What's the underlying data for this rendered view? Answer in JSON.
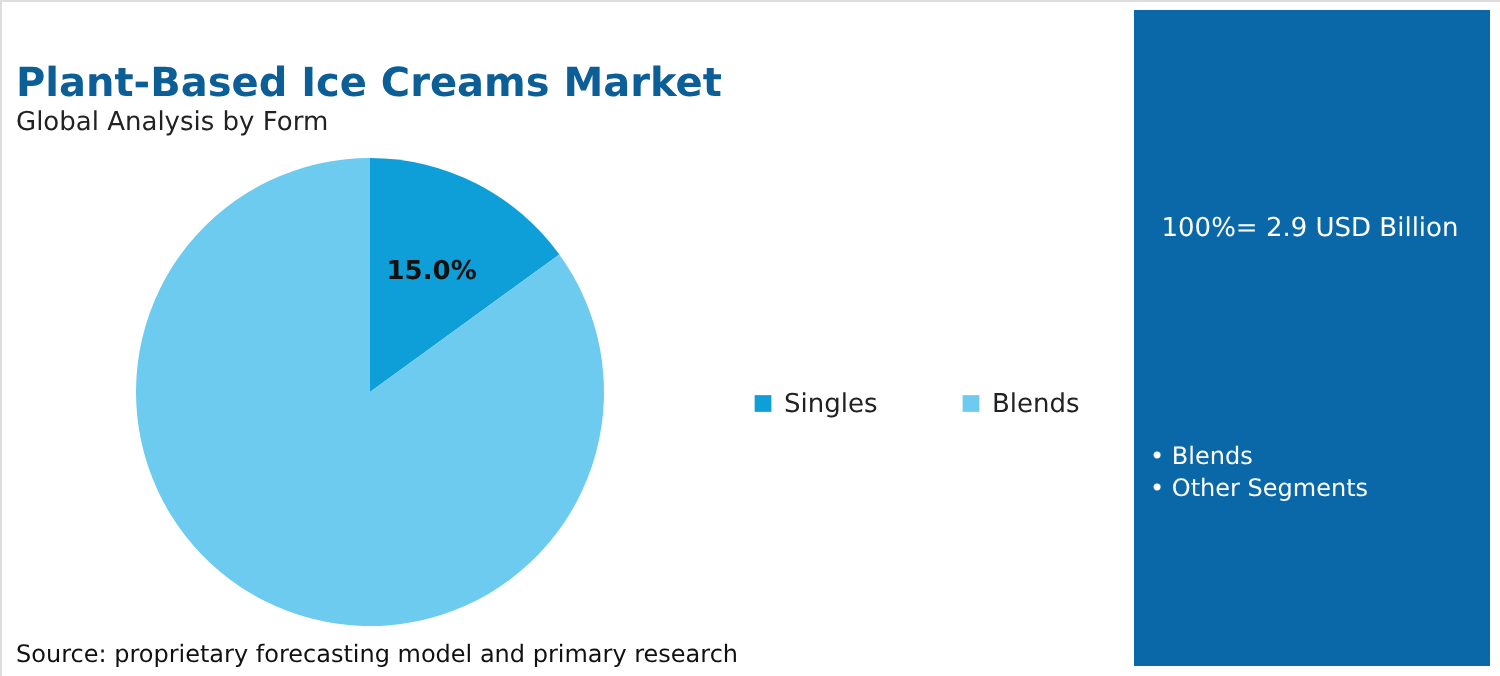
{
  "chart_data": {
    "type": "pie",
    "title": "Plant-Based Ice Creams Market",
    "subtitle": "Global Analysis by Form",
    "categories": [
      "Singles",
      "Blends"
    ],
    "values": [
      15.0,
      85.0
    ],
    "value_labels": [
      "15.0%",
      null
    ],
    "colors": [
      "#0e9ed8",
      "#6ccbef"
    ],
    "legend": "right",
    "annotations": [
      "100%= 2.9 USD Billion",
      "• Blends",
      "• Other Segments",
      "Source: proprietary forecasting model and primary research"
    ]
  }
}
